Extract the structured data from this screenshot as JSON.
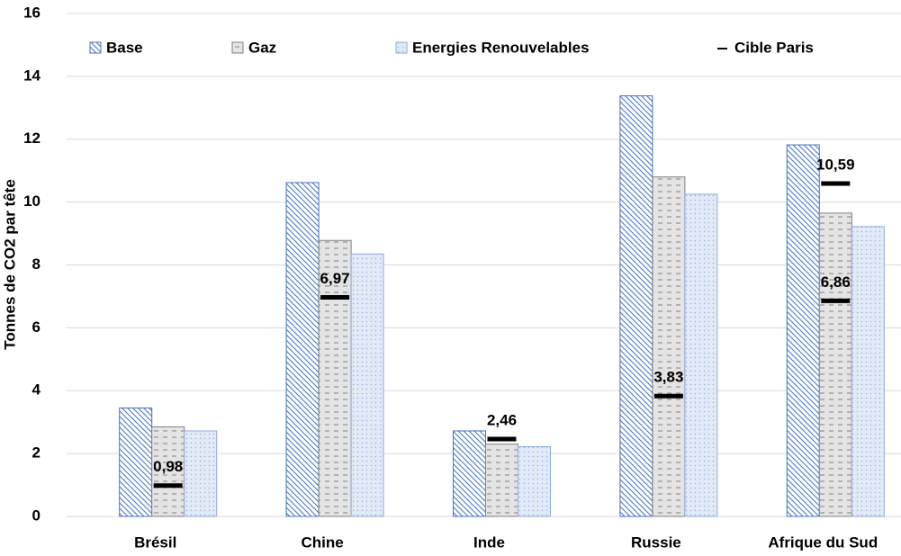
{
  "chart_data": {
    "type": "bar",
    "y_axis_label": "Tonnes de CO2 par tête",
    "categories": [
      "Brésil",
      "Chine",
      "Inde",
      "Russie",
      "Afrique du Sud"
    ],
    "series": [
      {
        "name": "Base",
        "color": "#4472c4",
        "pattern": "diagonal",
        "values": [
          3.45,
          10.62,
          2.72,
          13.38,
          11.82
        ]
      },
      {
        "name": "Gaz",
        "color": "#7f7f7f",
        "pattern": "dashes",
        "values": [
          2.85,
          8.78,
          2.3,
          10.8,
          9.65
        ]
      },
      {
        "name": "Energies Renouvelables",
        "color": "#8faadc",
        "pattern": "dots",
        "values": [
          2.72,
          8.35,
          2.22,
          10.25,
          9.22
        ]
      }
    ],
    "targets": {
      "name": "Cible Paris",
      "color": "#000000",
      "values": [
        [
          0.98
        ],
        [
          6.97
        ],
        [
          2.46
        ],
        [
          3.83
        ],
        [
          10.59,
          6.86
        ]
      ],
      "value_labels": [
        [
          "0,98"
        ],
        [
          "6,97"
        ],
        [
          "2,46"
        ],
        [
          "3,83"
        ],
        [
          "10,59",
          "6,86"
        ]
      ]
    },
    "ylim": [
      0,
      16
    ],
    "yticks": [
      0,
      2,
      4,
      6,
      8,
      10,
      12,
      14,
      16
    ],
    "grid": true,
    "legend": "top"
  }
}
